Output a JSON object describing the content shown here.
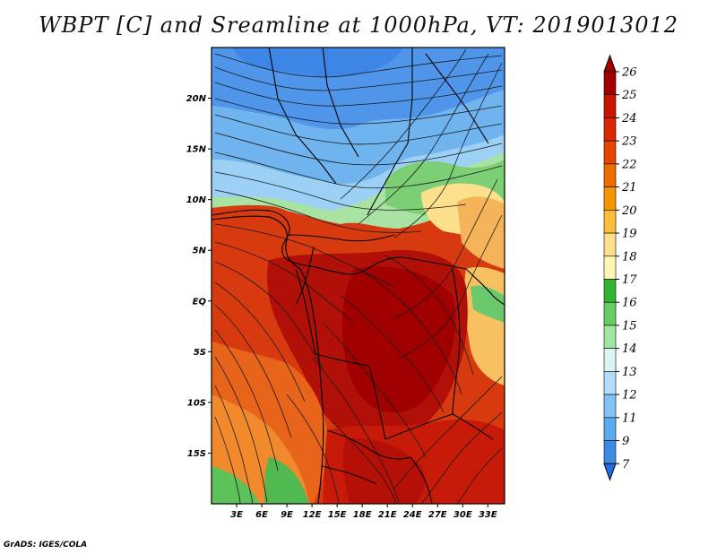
{
  "title": "WBPT [C] and Sreamline at 1000hPa, VT: 2019013012",
  "credit": "GrADS: IGES/COLA",
  "map": {
    "lon_ticks": [
      "3E",
      "6E",
      "9E",
      "12E",
      "15E",
      "18E",
      "21E",
      "24E",
      "27E",
      "30E",
      "33E"
    ],
    "lat_ticks": [
      "20N",
      "15N",
      "10N",
      "5N",
      "EQ",
      "5S",
      "10S",
      "15S"
    ],
    "lon_range": [
      0,
      35
    ],
    "lat_range": [
      -20,
      25
    ]
  },
  "colorbar": {
    "labels": [
      "26",
      "25",
      "24",
      "23",
      "22",
      "21",
      "20",
      "19",
      "18",
      "17",
      "16",
      "15",
      "14",
      "13",
      "12",
      "11",
      "9",
      "7"
    ],
    "colors": [
      "#a00000",
      "#c81400",
      "#dc2800",
      "#e64600",
      "#f06e00",
      "#f59600",
      "#fabe3c",
      "#fde08c",
      "#fff5b4",
      "#32b432",
      "#64cd64",
      "#a0e6a0",
      "#dcf5f0",
      "#b4dcfa",
      "#82c3f5",
      "#5aaaf0",
      "#3c8ce6",
      "#1e6ee6"
    ]
  }
}
